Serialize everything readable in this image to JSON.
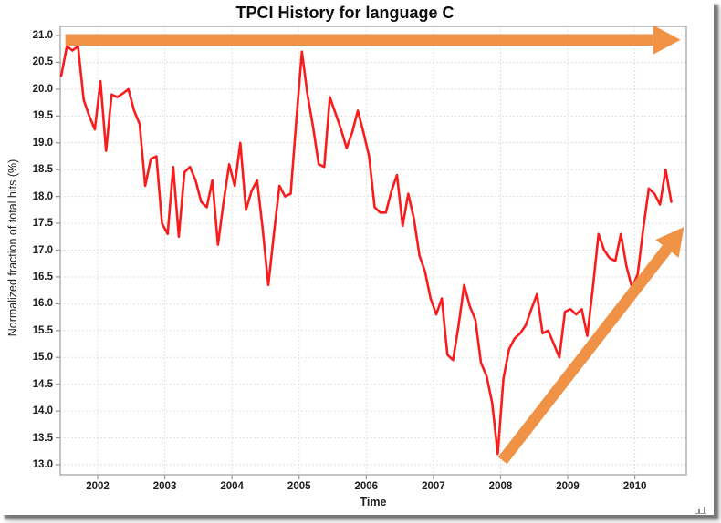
{
  "title": "TPCI History for language C",
  "chart_data": {
    "type": "line",
    "title": "TPCI History for language C",
    "xlabel": "Time",
    "ylabel": "Normalized fraction of total hits (%)",
    "xlim": [
      2001.443,
      2010.766
    ],
    "ylim": [
      13.0,
      21.0
    ],
    "grid": true,
    "legend": "none",
    "xtick_labels": [
      "2002",
      "2003",
      "2004",
      "2005",
      "2006",
      "2007",
      "2008",
      "2009",
      "2010"
    ],
    "ytick_labels": [
      "21.0",
      "20.5",
      "20.0",
      "19.5",
      "19.0",
      "18.5",
      "18.0",
      "17.5",
      "17.0",
      "16.5",
      "16.0",
      "15.5",
      "15.0",
      "14.5",
      "14.0",
      "13.5",
      "13.0"
    ],
    "colors": {
      "line": "#f91c1c",
      "arrow": "#ef9245",
      "grid": "#d6d6d6",
      "frame": "#ababab",
      "tick": "#8f8f8f",
      "text": "#1c1c1c"
    },
    "series": [
      {
        "name": "C",
        "x": [
          2001.458,
          2001.542,
          2001.625,
          2001.708,
          2001.792,
          2001.875,
          2001.958,
          2002.042,
          2002.125,
          2002.208,
          2002.292,
          2002.375,
          2002.458,
          2002.542,
          2002.625,
          2002.708,
          2002.792,
          2002.875,
          2002.958,
          2003.042,
          2003.125,
          2003.208,
          2003.292,
          2003.375,
          2003.458,
          2003.542,
          2003.625,
          2003.708,
          2003.792,
          2003.875,
          2003.958,
          2004.042,
          2004.125,
          2004.208,
          2004.292,
          2004.375,
          2004.458,
          2004.542,
          2004.625,
          2004.708,
          2004.792,
          2004.875,
          2004.958,
          2005.042,
          2005.125,
          2005.208,
          2005.292,
          2005.375,
          2005.458,
          2005.542,
          2005.625,
          2005.708,
          2005.792,
          2005.875,
          2005.958,
          2006.042,
          2006.125,
          2006.208,
          2006.292,
          2006.375,
          2006.458,
          2006.542,
          2006.625,
          2006.708,
          2006.792,
          2006.875,
          2006.958,
          2007.042,
          2007.125,
          2007.208,
          2007.292,
          2007.375,
          2007.458,
          2007.542,
          2007.625,
          2007.708,
          2007.792,
          2007.875,
          2007.958,
          2008.042,
          2008.125,
          2008.208,
          2008.292,
          2008.375,
          2008.458,
          2008.542,
          2008.625,
          2008.708,
          2008.792,
          2008.875,
          2008.958,
          2009.042,
          2009.125,
          2009.208,
          2009.292,
          2009.375,
          2009.458,
          2009.542,
          2009.625,
          2009.708,
          2009.792,
          2009.875,
          2009.958,
          2010.042,
          2010.125,
          2010.208,
          2010.292,
          2010.375,
          2010.458,
          2010.542
        ],
        "y": [
          20.25,
          20.8,
          20.72,
          20.8,
          19.8,
          19.5,
          19.25,
          20.15,
          18.85,
          19.9,
          19.85,
          19.92,
          20.0,
          19.6,
          19.35,
          18.2,
          18.7,
          18.75,
          17.5,
          17.3,
          18.55,
          17.25,
          18.45,
          18.55,
          18.3,
          17.9,
          17.8,
          18.3,
          17.1,
          17.9,
          18.6,
          18.2,
          19.0,
          17.75,
          18.1,
          18.3,
          17.4,
          16.35,
          17.3,
          18.2,
          18.0,
          18.05,
          19.4,
          20.7,
          19.9,
          19.3,
          18.6,
          18.55,
          19.85,
          19.55,
          19.25,
          18.9,
          19.2,
          19.6,
          19.2,
          18.75,
          17.8,
          17.7,
          17.7,
          18.1,
          18.4,
          17.45,
          18.05,
          17.6,
          16.9,
          16.6,
          16.1,
          15.8,
          16.1,
          15.05,
          14.95,
          15.6,
          16.35,
          15.95,
          15.7,
          14.9,
          14.65,
          14.15,
          13.2,
          14.6,
          15.15,
          15.35,
          15.45,
          15.6,
          15.9,
          16.18,
          15.45,
          15.5,
          15.25,
          15.0,
          15.85,
          15.9,
          15.8,
          15.9,
          15.4,
          16.3,
          17.3,
          17.0,
          16.85,
          16.8,
          17.3,
          16.7,
          16.3,
          16.55,
          17.4,
          18.15,
          18.05,
          17.85,
          18.5,
          17.9
        ]
      }
    ],
    "annotations": [
      {
        "name": "flat-trend-arrow",
        "x1": 2001.52,
        "y1": 20.92,
        "x2": 2010.68,
        "y2": 20.92,
        "color": "#ef9245"
      },
      {
        "name": "rising-trend-arrow",
        "x1": 2008.03,
        "y1": 13.08,
        "x2": 2010.73,
        "y2": 17.43,
        "color": "#ef9245"
      }
    ]
  }
}
